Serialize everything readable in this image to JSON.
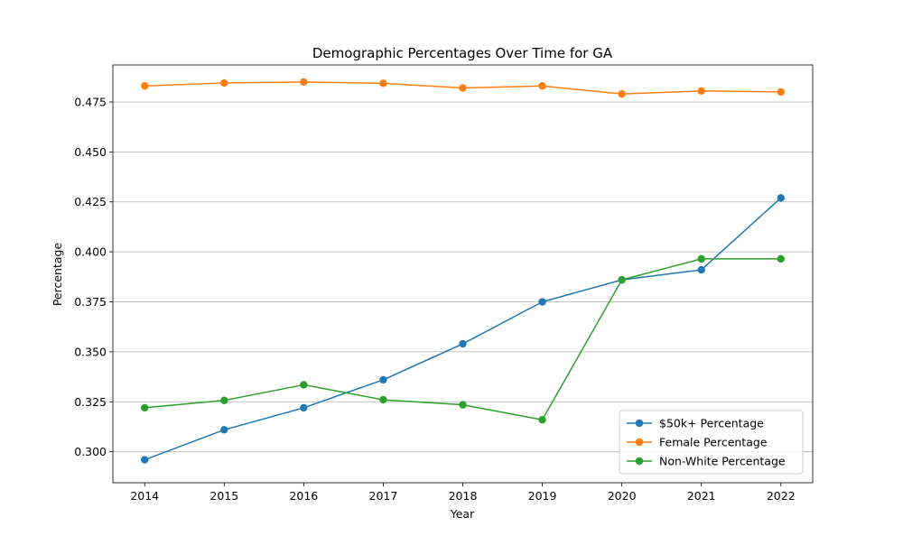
{
  "chart_data": {
    "type": "line",
    "title": "Demographic Percentages Over Time for GA",
    "xlabel": "Year",
    "ylabel": "Percentage",
    "x": [
      "2014",
      "2015",
      "2016",
      "2017",
      "2018",
      "2019",
      "2020",
      "2021",
      "2022"
    ],
    "xlim": [
      2013.6,
      2022.4
    ],
    "ylim": [
      0.2845,
      0.4935
    ],
    "yticks": [
      0.3,
      0.325,
      0.35,
      0.375,
      0.4,
      0.425,
      0.45,
      0.475
    ],
    "ytick_labels": [
      "0.300",
      "0.325",
      "0.350",
      "0.375",
      "0.400",
      "0.425",
      "0.450",
      "0.475"
    ],
    "grid": "y",
    "legend_position": "lower-right",
    "series": [
      {
        "name": "$50k+ Percentage",
        "color": "#1f77b4",
        "values": [
          0.296,
          0.311,
          0.322,
          0.336,
          0.354,
          0.375,
          0.386,
          0.391,
          0.427
        ]
      },
      {
        "name": "Female Percentage",
        "color": "#ff7f0e",
        "values": [
          0.483,
          0.4845,
          0.485,
          0.4843,
          0.482,
          0.483,
          0.479,
          0.4805,
          0.48
        ]
      },
      {
        "name": "Non-White Percentage",
        "color": "#2ca02c",
        "values": [
          0.322,
          0.3257,
          0.3335,
          0.326,
          0.3235,
          0.316,
          0.386,
          0.3965,
          0.3965
        ]
      }
    ]
  }
}
